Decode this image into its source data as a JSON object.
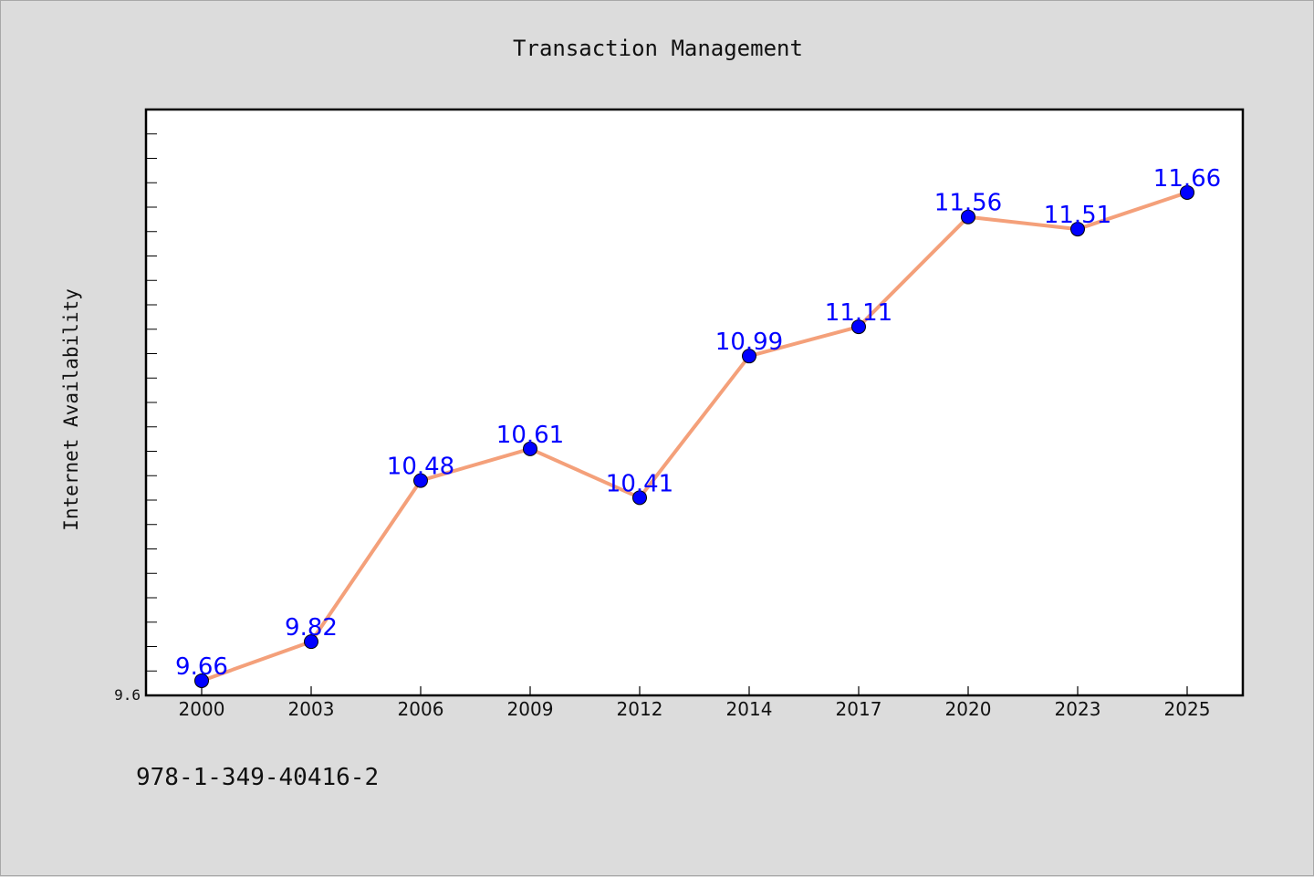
{
  "chart_data": {
    "type": "line",
    "title": "Transaction Management",
    "ylabel": "Internet Availability",
    "xlabel": "",
    "categories": [
      "2000",
      "2003",
      "2006",
      "2009",
      "2012",
      "2014",
      "2017",
      "2020",
      "2023",
      "2025"
    ],
    "series": [
      {
        "values": [
          9.66,
          9.82,
          10.48,
          10.61,
          10.41,
          10.99,
          11.11,
          11.56,
          11.51,
          11.66
        ]
      }
    ],
    "ylim": [
      9.6,
      12.0
    ],
    "yticks_labeled": [
      "9.6"
    ],
    "grid": false,
    "legend": "none",
    "colors": {
      "line": "#f4a07a",
      "marker": "#0000ff",
      "data_label": "#0000ff",
      "plot_background": "#ffffff",
      "page_background": "#dcdcdc"
    }
  },
  "footnote": "978-1-349-40416-2"
}
